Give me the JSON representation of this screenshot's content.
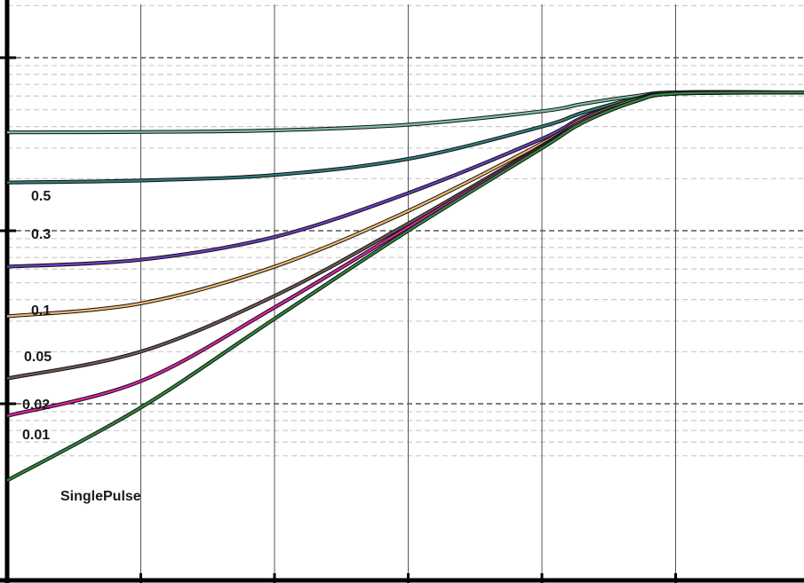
{
  "chart_data": {
    "type": "line",
    "title": "",
    "xlabel": "",
    "ylabel": "",
    "x_scale": "log",
    "y_scale": "log",
    "xlim": [
      1e-06,
      10
    ],
    "ylim": [
      0.005,
      2
    ],
    "x_major_ticks": [
      1e-06,
      1e-05,
      0.0001,
      0.001,
      0.01,
      0.1,
      1,
      10
    ],
    "y_major_ticks": [
      0.01,
      0.1,
      1
    ],
    "grid": true,
    "legend": "inline-left",
    "series": [
      {
        "name": "0.5",
        "color": "#7fbfa8",
        "x": [
          1e-06,
          1e-05,
          0.0001,
          0.001,
          0.01,
          0.02,
          0.05,
          0.1,
          1,
          10
        ],
        "y": [
          0.37,
          0.372,
          0.38,
          0.41,
          0.49,
          0.54,
          0.6,
          0.63,
          0.63,
          0.63
        ]
      },
      {
        "name": "0.3",
        "color": "#2e7d7a",
        "x": [
          1e-06,
          1e-05,
          0.0001,
          0.001,
          0.01,
          0.02,
          0.05,
          0.1,
          1,
          10
        ],
        "y": [
          0.19,
          0.195,
          0.21,
          0.26,
          0.4,
          0.48,
          0.58,
          0.63,
          0.63,
          0.63
        ]
      },
      {
        "name": "0.1",
        "color": "#6a3fc0",
        "x": [
          1e-06,
          1e-05,
          0.0001,
          0.001,
          0.01,
          0.02,
          0.05,
          0.1,
          1,
          10
        ],
        "y": [
          0.062,
          0.068,
          0.092,
          0.165,
          0.34,
          0.45,
          0.57,
          0.62,
          0.63,
          0.63
        ]
      },
      {
        "name": "0.05",
        "color": "#f2b870",
        "x": [
          1e-06,
          1e-05,
          0.0001,
          0.001,
          0.01,
          0.02,
          0.05,
          0.1,
          1,
          10
        ],
        "y": [
          0.032,
          0.038,
          0.062,
          0.13,
          0.32,
          0.44,
          0.57,
          0.62,
          0.63,
          0.63
        ]
      },
      {
        "name": "0.02",
        "color": "#6e5a52",
        "x": [
          1e-06,
          1e-05,
          0.0001,
          0.001,
          0.01,
          0.02,
          0.05,
          0.1,
          1,
          10
        ],
        "y": [
          0.014,
          0.02,
          0.042,
          0.11,
          0.31,
          0.43,
          0.56,
          0.62,
          0.63,
          0.63
        ]
      },
      {
        "name": "0.01",
        "color": "#e020a8",
        "x": [
          1e-06,
          1e-05,
          0.0001,
          0.001,
          0.01,
          0.02,
          0.05,
          0.1,
          1,
          10
        ],
        "y": [
          0.0085,
          0.0135,
          0.036,
          0.105,
          0.305,
          0.43,
          0.56,
          0.62,
          0.63,
          0.63
        ]
      },
      {
        "name": "SinglePulse",
        "color": "#2f8a3e",
        "x": [
          1e-06,
          1e-05,
          0.0001,
          0.001,
          0.01,
          0.02,
          0.05,
          0.1,
          1,
          10
        ],
        "y": [
          0.0036,
          0.0095,
          0.031,
          0.1,
          0.3,
          0.42,
          0.56,
          0.62,
          0.63,
          0.63
        ]
      }
    ]
  }
}
